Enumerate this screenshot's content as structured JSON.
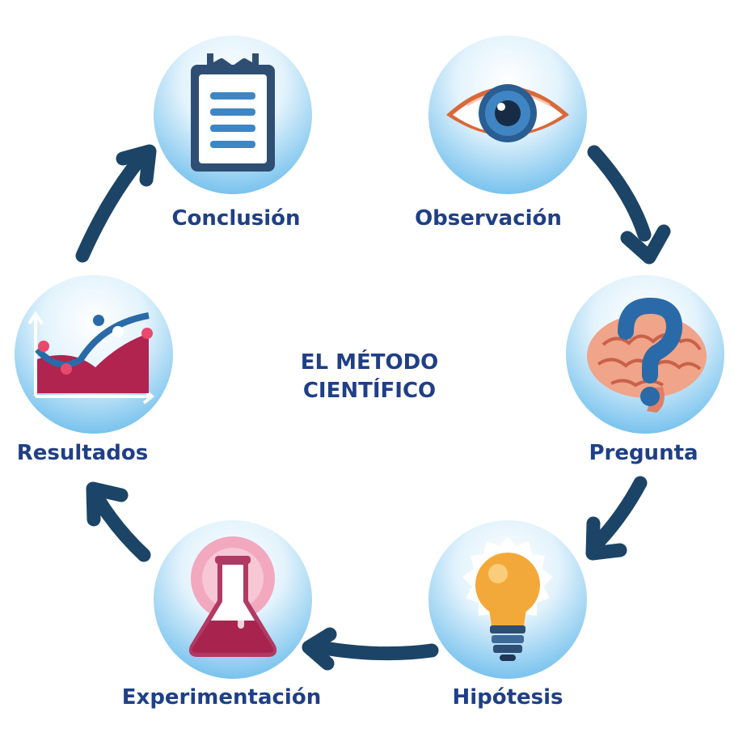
{
  "title_lines": [
    "EL MÉTODO",
    "CIENTÍFICO"
  ],
  "steps": [
    {
      "label": "Observación",
      "icon": "eye-icon"
    },
    {
      "label": "Pregunta",
      "icon": "brain-question-icon"
    },
    {
      "label": "Hipótesis",
      "icon": "lightbulb-icon"
    },
    {
      "label": "Experimentación",
      "icon": "flask-icon"
    },
    {
      "label": "Resultados",
      "icon": "chart-icon"
    },
    {
      "label": "Conclusión",
      "icon": "clipboard-icon"
    }
  ],
  "colors": {
    "label_text": "#1f3f86",
    "arrow": "#1c4466",
    "circle_edge": "#4fa9e0",
    "circle_center": "#e3f3fc"
  }
}
